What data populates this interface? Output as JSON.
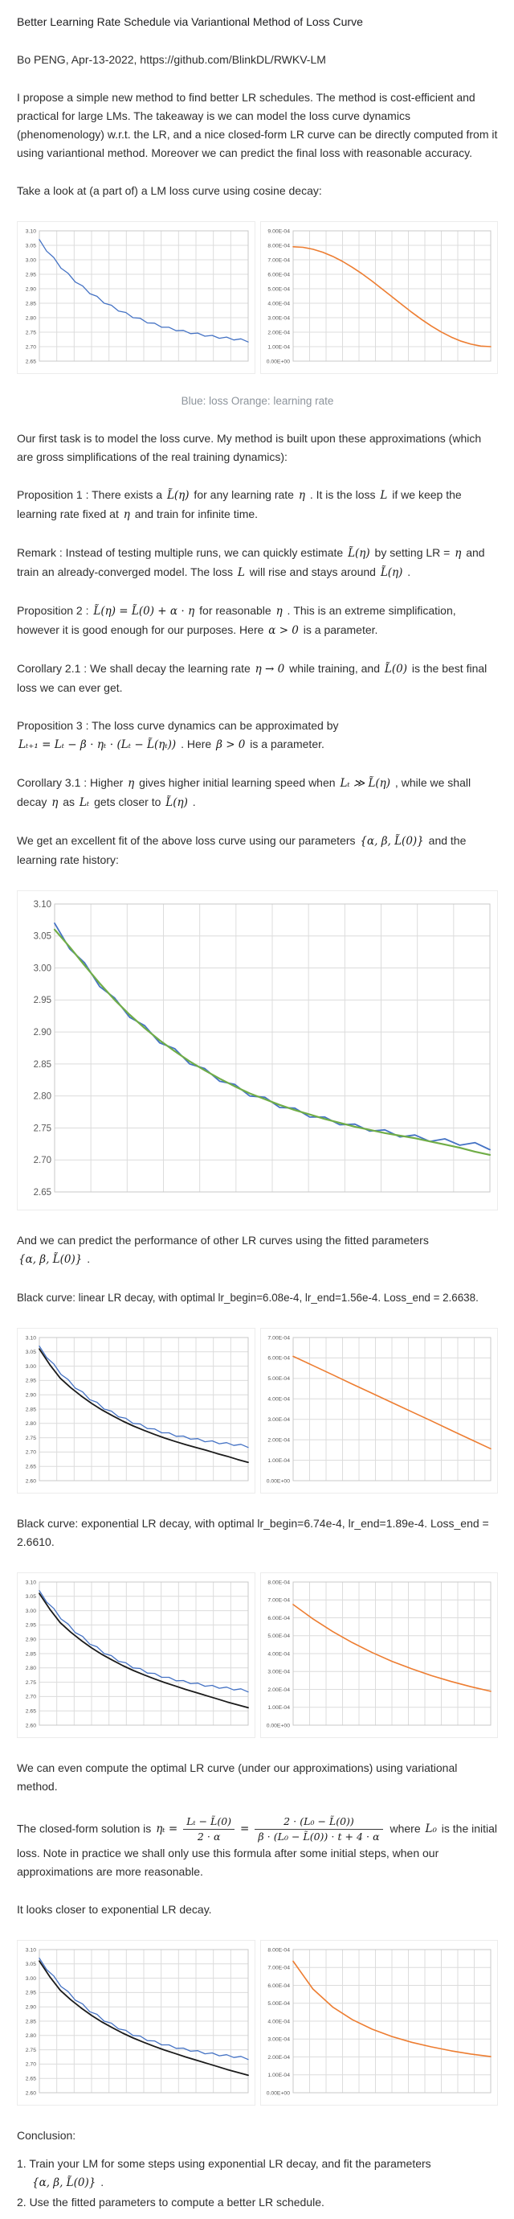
{
  "page": {
    "title": "Better Learning Rate Schedule via Variantional Method of Loss Curve",
    "byline": "Bo PENG, Apr-13-2022, https://github.com/BlinkDL/RWKV-LM"
  },
  "paragraphs": {
    "intro": [
      {
        "t": "I propose a simple new method to find better LR schedules. The method is cost-efficient and practical for large LMs. The takeaway is we can model the loss curve dynamics (phenomenology) w.r.t. the LR, and a nice closed-form LR curve can be directly computed from it using variantional method. Moreover we can predict the final loss with reasonable accuracy."
      }
    ],
    "take_a_look": [
      {
        "t": "Take a look at (a part of) a LM loss curve using cosine decay:"
      }
    ],
    "caption1": [
      {
        "t": "Blue: loss Orange: learning rate"
      }
    ],
    "model_task": [
      {
        "t": "Our first task is to model the loss curve. My method is built upon these approximations (which are gross simplifications of the real training dynamics):"
      }
    ],
    "prop1": [
      {
        "t": "Proposition 1 : There exists a "
      },
      {
        "m": "L̃(η)"
      },
      {
        "t": " for any learning rate "
      },
      {
        "m": "η"
      },
      {
        "t": " . It is the loss "
      },
      {
        "m": "L"
      },
      {
        "t": " if we keep the learning rate fixed at "
      },
      {
        "m": "η"
      },
      {
        "t": " and train for infinite time."
      }
    ],
    "remark": [
      {
        "t": "Remark : Instead of testing multiple runs, we can quickly estimate "
      },
      {
        "m": "L̃(η)"
      },
      {
        "t": " by setting LR = "
      },
      {
        "m": "η"
      },
      {
        "t": " and train an already-converged model. The loss "
      },
      {
        "m": "L"
      },
      {
        "t": " will rise and stays around "
      },
      {
        "m": "L̃(η)"
      },
      {
        "t": " ."
      }
    ],
    "prop2": [
      {
        "t": "Proposition 2 : "
      },
      {
        "m": "L̃(η) = L̃(0) + α ⋅ η"
      },
      {
        "t": " for reasonable "
      },
      {
        "m": "η"
      },
      {
        "t": " . This is an extreme simplification, however it is good enough for our purposes. Here "
      },
      {
        "m": "α > 0"
      },
      {
        "t": " is a parameter."
      }
    ],
    "cor21": [
      {
        "t": "Corollary 2.1 : We shall decay the learning rate "
      },
      {
        "m": "η → 0"
      },
      {
        "t": " while training, and "
      },
      {
        "m": "L̃(0)"
      },
      {
        "t": " is the best final loss we can ever get."
      }
    ],
    "prop3": [
      {
        "t": "Proposition 3 : The loss curve dynamics can be approximated by "
      },
      {
        "m": "Lₜ₊₁ = Lₜ − β ⋅ ηₜ ⋅ (Lₜ − L̃(ηₜ))"
      },
      {
        "t": " . Here "
      },
      {
        "m": "β > 0"
      },
      {
        "t": " is a parameter."
      }
    ],
    "cor31": [
      {
        "t": "Corollary 3.1 : Higher "
      },
      {
        "m": "η"
      },
      {
        "t": " gives higher initial learning speed when "
      },
      {
        "m": "Lₜ ≫ L̃(η)"
      },
      {
        "t": " , while we shall decay "
      },
      {
        "m": "η"
      },
      {
        "t": " as "
      },
      {
        "m": "Lₜ"
      },
      {
        "t": " gets closer to "
      },
      {
        "m": "L̃(η)"
      },
      {
        "t": " ."
      }
    ],
    "fit": [
      {
        "t": "We get an excellent fit of the above loss curve using our parameters "
      },
      {
        "m": "{α, β, L̃(0)}"
      },
      {
        "t": " and the learning rate history:"
      }
    ],
    "predict": [
      {
        "t": "And we can predict the performance of other LR curves using the fitted parameters "
      },
      {
        "m": "{α, β, L̃(0)}"
      },
      {
        "t": " ."
      }
    ],
    "black_linear": [
      {
        "t": "Black curve: linear LR decay, with optimal lr_begin=6.08e-4, lr_end=1.56e-4. Loss_end = 2.6638."
      }
    ],
    "black_exp": [
      {
        "t": "Black curve: exponential LR decay, with optimal lr_begin=6.74e-4, lr_end=1.89e-4. Loss_end = 2.6610."
      }
    ],
    "variational": [
      {
        "t": "We can even compute the optimal LR curve (under our approximations) using variational method."
      }
    ],
    "closed_form": [
      {
        "t": "The closed-form solution is "
      },
      {
        "m": "ηₜ ="
      },
      {
        "f": [
          "Lₜ − L̃(0)",
          "2 ⋅ α"
        ]
      },
      {
        "m": "="
      },
      {
        "f": [
          "2 ⋅ (L₀ − L̃(0))",
          "β ⋅ (L₀ − L̃(0)) ⋅ t + 4 ⋅ α"
        ]
      },
      {
        "t": " where "
      },
      {
        "m": "L₀"
      },
      {
        "t": " is the initial loss. Note in practice we shall only use this formula after some initial steps, when our approximations are more reasonable."
      }
    ],
    "closer": [
      {
        "t": "It looks closer to exponential LR decay."
      }
    ],
    "conclusion_title": [
      {
        "t": "Conclusion:"
      }
    ],
    "conclusion1": [
      {
        "t": "1. Train your LM for some steps using exponential LR decay, and fit the parameters "
      },
      {
        "m": "{α, β, L̃(0)}"
      },
      {
        "t": " ."
      }
    ],
    "conclusion2": [
      {
        "t": "2. Use the fitted parameters to compute a better LR schedule."
      }
    ]
  },
  "chart_data": [
    {
      "name": "loss-curve-cosine-decay",
      "type": "line",
      "title": "",
      "xlabel": "",
      "ylabel": "",
      "ylim": [
        2.65,
        3.1
      ],
      "yticks": [
        "3.10",
        "3.05",
        "3.00",
        "2.95",
        "2.90",
        "2.85",
        "2.80",
        "2.75",
        "2.70",
        "2.65"
      ],
      "xdivs": 12,
      "grid": true,
      "label_size": 6.8,
      "margin_left": 24,
      "series": [
        {
          "name": "loss",
          "color": "#4472c4",
          "width": 1.3,
          "values": [
            3.07,
            3.03,
            3.008,
            2.971,
            2.953,
            2.923,
            2.91,
            2.883,
            2.874,
            2.85,
            2.843,
            2.823,
            2.818,
            2.8,
            2.798,
            2.782,
            2.781,
            2.767,
            2.767,
            2.755,
            2.756,
            2.745,
            2.747,
            2.736,
            2.739,
            2.729,
            2.733,
            2.723,
            2.727,
            2.716
          ]
        }
      ]
    },
    {
      "name": "lr-cosine-decay",
      "type": "line",
      "title": "",
      "xlabel": "",
      "ylabel": "",
      "ylim": [
        0,
        0.0009
      ],
      "yticks": [
        "9.00E-04",
        "8.00E-04",
        "7.00E-04",
        "6.00E-04",
        "5.00E-04",
        "4.00E-04",
        "3.00E-04",
        "2.00E-04",
        "1.00E-04",
        "0.00E+00"
      ],
      "xdivs": 12,
      "grid": true,
      "label_size": 6.8,
      "margin_left": 37,
      "series": [
        {
          "name": "learning rate",
          "color": "#ed7d31",
          "width": 1.6,
          "values": [
            0.00079,
            0.000786,
            0.000773,
            0.000752,
            0.000724,
            0.000689,
            0.000648,
            0.000602,
            0.000552,
            0.000499,
            0.000445,
            0.000391,
            0.000338,
            0.000288,
            0.000242,
            0.000201,
            0.000166,
            0.000138,
            0.000117,
            0.000104,
            0.0001
          ]
        }
      ]
    },
    {
      "name": "loss-curve-with-fit",
      "type": "line",
      "title": "",
      "xlabel": "",
      "ylabel": "",
      "ylim": [
        2.65,
        3.1
      ],
      "yticks": [
        "3.10",
        "3.05",
        "3.00",
        "2.95",
        "2.90",
        "2.85",
        "2.80",
        "2.75",
        "2.70",
        "2.65"
      ],
      "xdivs": 12,
      "grid": true,
      "label_size": 11.5,
      "margin_left": 42,
      "margin_top": 10,
      "margin_bottom": 16,
      "series": [
        {
          "name": "loss",
          "color": "#4472c4",
          "width": 1.8,
          "values": [
            3.07,
            3.03,
            3.008,
            2.971,
            2.953,
            2.923,
            2.91,
            2.883,
            2.874,
            2.85,
            2.843,
            2.823,
            2.818,
            2.8,
            2.798,
            2.782,
            2.781,
            2.767,
            2.767,
            2.755,
            2.756,
            2.745,
            2.747,
            2.736,
            2.739,
            2.729,
            2.733,
            2.723,
            2.727,
            2.716
          ]
        },
        {
          "name": "fitted model",
          "color": "#70ad47",
          "width": 2.2,
          "values": [
            3.06,
            3.033,
            3.004,
            2.976,
            2.95,
            2.927,
            2.906,
            2.887,
            2.87,
            2.854,
            2.84,
            2.827,
            2.815,
            2.804,
            2.795,
            2.786,
            2.778,
            2.771,
            2.764,
            2.758,
            2.752,
            2.747,
            2.742,
            2.738,
            2.734,
            2.729,
            2.724,
            2.719,
            2.713,
            2.708
          ]
        }
      ]
    },
    {
      "name": "loss-predicted-linear-decay",
      "type": "line",
      "title": "",
      "xlabel": "",
      "ylabel": "",
      "ylim": [
        2.6,
        3.1
      ],
      "yticks": [
        "3.10",
        "3.05",
        "3.00",
        "2.95",
        "2.90",
        "2.85",
        "2.80",
        "2.75",
        "2.70",
        "2.65",
        "2.60"
      ],
      "xdivs": 12,
      "grid": true,
      "label_size": 6.8,
      "margin_left": 24,
      "series": [
        {
          "name": "actual loss (cosine)",
          "color": "#4472c4",
          "width": 1.3,
          "values": [
            3.07,
            3.03,
            3.008,
            2.971,
            2.953,
            2.923,
            2.91,
            2.883,
            2.874,
            2.85,
            2.843,
            2.823,
            2.818,
            2.8,
            2.798,
            2.782,
            2.781,
            2.767,
            2.767,
            2.755,
            2.756,
            2.745,
            2.747,
            2.736,
            2.739,
            2.729,
            2.733,
            2.723,
            2.727,
            2.716
          ]
        },
        {
          "name": "predicted loss (linear decay)",
          "color": "#1a1a1a",
          "width": 1.8,
          "values": [
            3.06,
            3.005,
            2.958,
            2.925,
            2.896,
            2.87,
            2.847,
            2.827,
            2.808,
            2.791,
            2.776,
            2.762,
            2.749,
            2.737,
            2.726,
            2.716,
            2.706,
            2.695,
            2.685,
            2.674,
            2.664
          ]
        }
      ]
    },
    {
      "name": "lr-linear-decay",
      "type": "line",
      "title": "",
      "xlabel": "",
      "ylabel": "",
      "ylim": [
        0,
        0.0007
      ],
      "yticks": [
        "7.00E-04",
        "6.00E-04",
        "5.00E-04",
        "4.00E-04",
        "3.00E-04",
        "2.00E-04",
        "1.00E-04",
        "0.00E+00"
      ],
      "xdivs": 12,
      "grid": true,
      "label_size": 6.8,
      "margin_left": 37,
      "series": [
        {
          "name": "learning rate",
          "color": "#ed7d31",
          "width": 1.6,
          "values": [
            0.000608,
            0.000563,
            0.000518,
            0.000472,
            0.000427,
            0.000382,
            0.000337,
            0.000292,
            0.000246,
            0.000201,
            0.000156
          ]
        }
      ]
    },
    {
      "name": "loss-predicted-exponential-decay",
      "type": "line",
      "title": "",
      "xlabel": "",
      "ylabel": "",
      "ylim": [
        2.6,
        3.1
      ],
      "yticks": [
        "3.10",
        "3.05",
        "3.00",
        "2.95",
        "2.90",
        "2.85",
        "2.80",
        "2.75",
        "2.70",
        "2.65",
        "2.60"
      ],
      "xdivs": 12,
      "grid": true,
      "label_size": 6.8,
      "margin_left": 24,
      "series": [
        {
          "name": "actual loss (cosine)",
          "color": "#4472c4",
          "width": 1.3,
          "values": [
            3.07,
            3.03,
            3.008,
            2.971,
            2.953,
            2.923,
            2.91,
            2.883,
            2.874,
            2.85,
            2.843,
            2.823,
            2.818,
            2.8,
            2.798,
            2.782,
            2.781,
            2.767,
            2.767,
            2.755,
            2.756,
            2.745,
            2.747,
            2.736,
            2.739,
            2.729,
            2.733,
            2.723,
            2.727,
            2.716
          ]
        },
        {
          "name": "predicted loss (exponential decay)",
          "color": "#1a1a1a",
          "width": 1.8,
          "values": [
            3.06,
            3.005,
            2.958,
            2.925,
            2.896,
            2.87,
            2.847,
            2.827,
            2.808,
            2.791,
            2.776,
            2.762,
            2.749,
            2.737,
            2.725,
            2.714,
            2.703,
            2.692,
            2.681,
            2.671,
            2.661
          ]
        }
      ]
    },
    {
      "name": "lr-exponential-decay",
      "type": "line",
      "title": "",
      "xlabel": "",
      "ylabel": "",
      "ylim": [
        0,
        0.0008
      ],
      "yticks": [
        "8.00E-04",
        "7.00E-04",
        "6.00E-04",
        "5.00E-04",
        "4.00E-04",
        "3.00E-04",
        "2.00E-04",
        "1.00E-04",
        "0.00E+00"
      ],
      "xdivs": 12,
      "grid": true,
      "label_size": 6.8,
      "margin_left": 37,
      "series": [
        {
          "name": "learning rate",
          "color": "#ed7d31",
          "width": 1.6,
          "values": [
            0.000674,
            0.000594,
            0.000523,
            0.000461,
            0.000406,
            0.000357,
            0.000315,
            0.000277,
            0.000244,
            0.000215,
            0.000189
          ]
        }
      ]
    },
    {
      "name": "loss-predicted-variational-lr",
      "type": "line",
      "title": "",
      "xlabel": "",
      "ylabel": "",
      "ylim": [
        2.6,
        3.1
      ],
      "yticks": [
        "3.10",
        "3.05",
        "3.00",
        "2.95",
        "2.90",
        "2.85",
        "2.80",
        "2.75",
        "2.70",
        "2.65",
        "2.60"
      ],
      "xdivs": 12,
      "grid": true,
      "label_size": 6.8,
      "margin_left": 24,
      "series": [
        {
          "name": "actual loss (cosine)",
          "color": "#4472c4",
          "width": 1.3,
          "values": [
            3.07,
            3.03,
            3.008,
            2.971,
            2.953,
            2.923,
            2.91,
            2.883,
            2.874,
            2.85,
            2.843,
            2.823,
            2.818,
            2.8,
            2.798,
            2.782,
            2.781,
            2.767,
            2.767,
            2.755,
            2.756,
            2.745,
            2.747,
            2.736,
            2.739,
            2.729,
            2.733,
            2.723,
            2.727,
            2.716
          ]
        },
        {
          "name": "predicted loss (optimal variational LR)",
          "color": "#1a1a1a",
          "width": 1.8,
          "values": [
            3.06,
            3.005,
            2.958,
            2.925,
            2.896,
            2.87,
            2.847,
            2.827,
            2.808,
            2.791,
            2.776,
            2.762,
            2.749,
            2.737,
            2.725,
            2.714,
            2.703,
            2.692,
            2.681,
            2.671,
            2.661
          ]
        }
      ]
    },
    {
      "name": "lr-optimal-variational",
      "type": "line",
      "title": "",
      "xlabel": "",
      "ylabel": "",
      "ylim": [
        0,
        0.0008
      ],
      "yticks": [
        "8.00E-04",
        "7.00E-04",
        "6.00E-04",
        "5.00E-04",
        "4.00E-04",
        "3.00E-04",
        "2.00E-04",
        "1.00E-04",
        "0.00E+00"
      ],
      "xdivs": 12,
      "grid": true,
      "label_size": 6.8,
      "margin_left": 37,
      "series": [
        {
          "name": "learning rate",
          "color": "#ed7d31",
          "width": 1.6,
          "values": [
            0.000735,
            0.00058,
            0.000479,
            0.000408,
            0.000355,
            0.000314,
            0.000282,
            0.000256,
            0.000234,
            0.000216,
            0.000202
          ]
        }
      ]
    }
  ],
  "colors": {
    "loss_blue": "#4472c4",
    "lr_orange": "#ed7d31",
    "fit_green": "#70ad47",
    "predicted_black": "#1a1a1a",
    "grid": "#dcdcdc",
    "caption_gray": "#8d949c"
  }
}
